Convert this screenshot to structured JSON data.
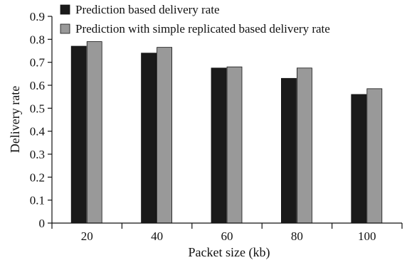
{
  "chart_data": {
    "type": "bar",
    "title": "",
    "xlabel": "Packet size (kb)",
    "ylabel": "Delivery rate",
    "categories": [
      "20",
      "40",
      "60",
      "80",
      "100"
    ],
    "ylim": [
      0,
      0.9
    ],
    "yticks": [
      "0",
      "0.1",
      "0.2",
      "0.3",
      "0.4",
      "0.5",
      "0.6",
      "0.7",
      "0.8",
      "0.9"
    ],
    "grid": false,
    "legend_position": "top-left",
    "series": [
      {
        "name": "Prediction based delivery rate",
        "color": "#1a1a1a",
        "values": [
          0.77,
          0.74,
          0.675,
          0.63,
          0.56
        ]
      },
      {
        "name": "Prediction with simple replicated based delivery rate",
        "color": "#999999",
        "values": [
          0.79,
          0.765,
          0.68,
          0.675,
          0.585
        ]
      }
    ]
  }
}
